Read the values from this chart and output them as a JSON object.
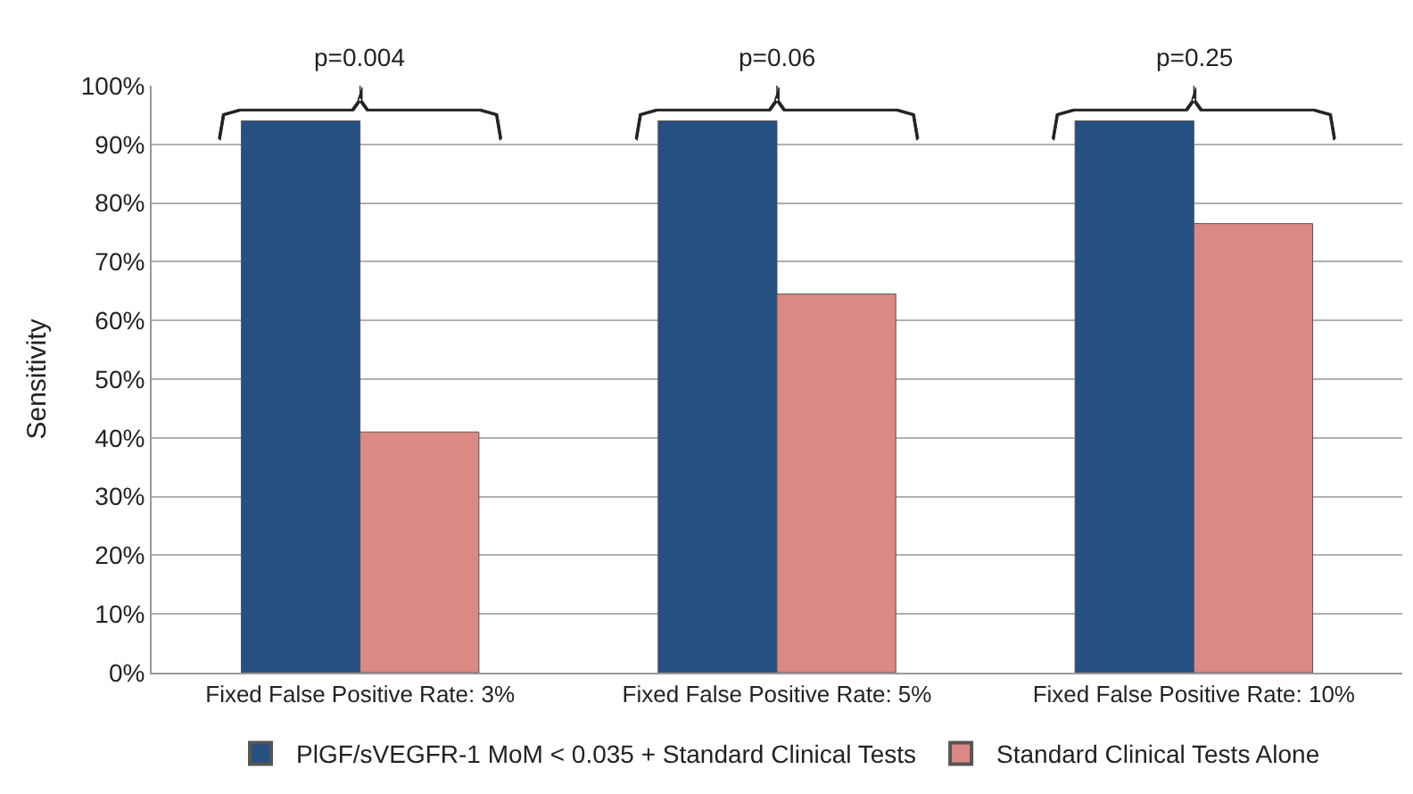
{
  "chart_data": {
    "type": "bar",
    "ylabel": "Sensitivity",
    "categories": [
      "Fixed False Positive Rate: 3%",
      "Fixed False Positive Rate: 5%",
      "Fixed False Positive Rate: 10%"
    ],
    "series": [
      {
        "name": "PlGF/sVEGFR-1 MoM < 0.035 + Standard Clinical Tests",
        "color": "#264f82",
        "values": [
          94,
          94,
          94
        ]
      },
      {
        "name": "Standard Clinical Tests Alone",
        "color": "#db8985",
        "values": [
          41,
          64.5,
          76.5
        ]
      }
    ],
    "ylim": [
      0,
      100
    ],
    "yticks": [
      {
        "value": 0,
        "label": "0%"
      },
      {
        "value": 10,
        "label": "10%"
      },
      {
        "value": 20,
        "label": "20%"
      },
      {
        "value": 30,
        "label": "30%"
      },
      {
        "value": 40,
        "label": "40%"
      },
      {
        "value": 50,
        "label": "50%"
      },
      {
        "value": 60,
        "label": "60%"
      },
      {
        "value": 70,
        "label": "70%"
      },
      {
        "value": 80,
        "label": "80%"
      },
      {
        "value": 90,
        "label": "90%"
      },
      {
        "value": 100,
        "label": "100%"
      }
    ],
    "annotations": [
      "p=0.004",
      "p=0.06",
      "p=0.25"
    ],
    "grid": "y",
    "legend": "bottom"
  }
}
